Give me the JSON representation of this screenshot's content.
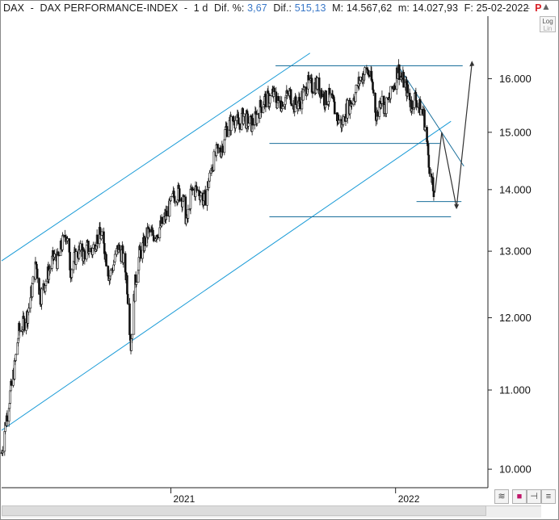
{
  "header": {
    "symbol": "DAX",
    "dash": "-",
    "name": "DAX PERFORMANCE-INDEX",
    "dash2": "-",
    "period": "1 d",
    "dif_pct_label": "Dif. %:",
    "dif_pct_value": "3,67",
    "dif_label": "Dif.:",
    "dif_value": "515,13",
    "max_label": "M:",
    "max_value": "14.567,62",
    "min_label": "m:",
    "min_value": "14.027,93",
    "date_label": "F:",
    "date_value": "25-02-2022",
    "flag": "P",
    "close_glyph": "−",
    "arrow_glyph": "▲"
  },
  "toolbar": {
    "log_label_1": "Log",
    "log_label_2": "Lin"
  },
  "bottom": {
    "btn_wave": "≋",
    "btn_save": "■",
    "btn_pin": "⊣",
    "btn_menu": "≡"
  },
  "colors": {
    "price": "#111111",
    "trendline": "#1a9bd7",
    "projection": "#333333",
    "axis": "#222222"
  },
  "chart_data": {
    "type": "candlestick",
    "instrument": "DAX PERFORMANCE-INDEX",
    "period": "daily",
    "y_scale": "log",
    "ylim": [
      9780,
      17250
    ],
    "y_ticks": [
      10000,
      11000,
      12000,
      13000,
      14000,
      15000,
      16000
    ],
    "y_tick_labels": [
      "10.000",
      "11.000",
      "12.000",
      "13.000",
      "14.000",
      "15.000",
      "16.000"
    ],
    "x_ticks": [
      {
        "pos": "2021-01-01",
        "label": "2021"
      },
      {
        "pos": "2022-01-01",
        "label": "2022"
      }
    ],
    "xlim": [
      "2020-04-01",
      "2022-05-31"
    ],
    "close_path": [
      [
        "2020-04-01",
        10200
      ],
      [
        "2020-04-08",
        10600
      ],
      [
        "2020-04-15",
        10950
      ],
      [
        "2020-04-22",
        11300
      ],
      [
        "2020-04-29",
        11800
      ],
      [
        "2020-05-06",
        11900
      ],
      [
        "2020-05-13",
        12050
      ],
      [
        "2020-05-20",
        12400
      ],
      [
        "2020-05-27",
        12800
      ],
      [
        "2020-06-03",
        12300
      ],
      [
        "2020-06-10",
        12500
      ],
      [
        "2020-06-17",
        12700
      ],
      [
        "2020-06-24",
        12900
      ],
      [
        "2020-07-01",
        12850
      ],
      [
        "2020-07-08",
        13100
      ],
      [
        "2020-07-15",
        13300
      ],
      [
        "2020-07-22",
        12700
      ],
      [
        "2020-07-29",
        12900
      ],
      [
        "2020-08-05",
        13000
      ],
      [
        "2020-08-12",
        12950
      ],
      [
        "2020-08-19",
        13050
      ],
      [
        "2020-08-26",
        13000
      ],
      [
        "2020-09-02",
        13200
      ],
      [
        "2020-09-09",
        13250
      ],
      [
        "2020-09-16",
        13000
      ],
      [
        "2020-09-23",
        12600
      ],
      [
        "2020-09-30",
        12800
      ],
      [
        "2020-10-07",
        13050
      ],
      [
        "2020-10-14",
        12950
      ],
      [
        "2020-10-21",
        12600
      ],
      [
        "2020-10-28",
        11600
      ],
      [
        "2020-11-04",
        12500
      ],
      [
        "2020-11-11",
        12950
      ],
      [
        "2020-11-18",
        13100
      ],
      [
        "2020-11-25",
        13300
      ],
      [
        "2020-12-02",
        13250
      ],
      [
        "2020-12-09",
        13300
      ],
      [
        "2020-12-16",
        13400
      ],
      [
        "2020-12-23",
        13550
      ],
      [
        "2020-12-30",
        13700
      ],
      [
        "2021-01-06",
        13900
      ],
      [
        "2021-01-13",
        13950
      ],
      [
        "2021-01-20",
        13850
      ],
      [
        "2021-01-27",
        13450
      ],
      [
        "2021-02-03",
        13950
      ],
      [
        "2021-02-10",
        14000
      ],
      [
        "2021-02-17",
        13950
      ],
      [
        "2021-02-24",
        13800
      ],
      [
        "2021-03-03",
        14100
      ],
      [
        "2021-03-10",
        14450
      ],
      [
        "2021-03-17",
        14650
      ],
      [
        "2021-03-24",
        14700
      ],
      [
        "2021-03-31",
        15050
      ],
      [
        "2021-04-07",
        15150
      ],
      [
        "2021-04-14",
        15250
      ],
      [
        "2021-04-21",
        15150
      ],
      [
        "2021-04-28",
        15300
      ],
      [
        "2021-05-05",
        15200
      ],
      [
        "2021-05-12",
        15150
      ],
      [
        "2021-05-19",
        15250
      ],
      [
        "2021-05-26",
        15450
      ],
      [
        "2021-06-02",
        15600
      ],
      [
        "2021-06-09",
        15600
      ],
      [
        "2021-06-16",
        15700
      ],
      [
        "2021-06-23",
        15550
      ],
      [
        "2021-06-30",
        15550
      ],
      [
        "2021-07-07",
        15650
      ],
      [
        "2021-07-14",
        15700
      ],
      [
        "2021-07-21",
        15500
      ],
      [
        "2021-07-28",
        15550
      ],
      [
        "2021-08-04",
        15700
      ],
      [
        "2021-08-11",
        15900
      ],
      [
        "2021-08-18",
        15850
      ],
      [
        "2021-08-25",
        15900
      ],
      [
        "2021-09-01",
        15800
      ],
      [
        "2021-09-08",
        15600
      ],
      [
        "2021-09-15",
        15650
      ],
      [
        "2021-09-22",
        15500
      ],
      [
        "2021-09-29",
        15250
      ],
      [
        "2021-10-06",
        15150
      ],
      [
        "2021-10-13",
        15400
      ],
      [
        "2021-10-20",
        15550
      ],
      [
        "2021-10-27",
        15700
      ],
      [
        "2021-11-03",
        15950
      ],
      [
        "2021-11-10",
        16100
      ],
      [
        "2021-11-17",
        16150
      ],
      [
        "2021-11-24",
        15900
      ],
      [
        "2021-12-01",
        15250
      ],
      [
        "2021-12-08",
        15650
      ],
      [
        "2021-12-15",
        15450
      ],
      [
        "2021-12-22",
        15600
      ],
      [
        "2021-12-29",
        15880
      ],
      [
        "2022-01-05",
        16200
      ],
      [
        "2022-01-12",
        16000
      ],
      [
        "2022-01-19",
        15800
      ],
      [
        "2022-01-26",
        15500
      ],
      [
        "2022-02-02",
        15650
      ],
      [
        "2022-02-09",
        15450
      ],
      [
        "2022-02-16",
        15300
      ],
      [
        "2022-02-23",
        14600
      ],
      [
        "2022-02-28",
        14150
      ],
      [
        "2022-03-04",
        13950
      ]
    ],
    "annotations": {
      "upper_channel": [
        [
          "2020-04-01",
          12850
        ],
        [
          "2021-08-15",
          16500
        ]
      ],
      "lower_channel": [
        [
          "2020-04-01",
          10480
        ],
        [
          "2022-04-01",
          15200
        ]
      ],
      "resistance": [
        [
          "2021-06-20",
          16250
        ],
        [
          "2022-04-20",
          16250
        ]
      ],
      "support_mid": [
        [
          "2021-06-10",
          14800
        ],
        [
          "2022-03-14",
          14800
        ]
      ],
      "support_low": [
        [
          "2021-06-10",
          13550
        ],
        [
          "2022-04-01",
          13550
        ]
      ],
      "recent_low": [
        [
          "2022-02-04",
          13800
        ],
        [
          "2022-04-18",
          13800
        ]
      ],
      "downtrend": [
        [
          "2022-01-05",
          16250
        ],
        [
          "2022-04-22",
          14400
        ]
      ],
      "projection": [
        [
          "2022-03-06",
          13950
        ],
        [
          "2022-03-17",
          15000
        ],
        [
          "2022-04-10",
          13700
        ],
        [
          "2022-05-05",
          16300
        ]
      ]
    }
  }
}
